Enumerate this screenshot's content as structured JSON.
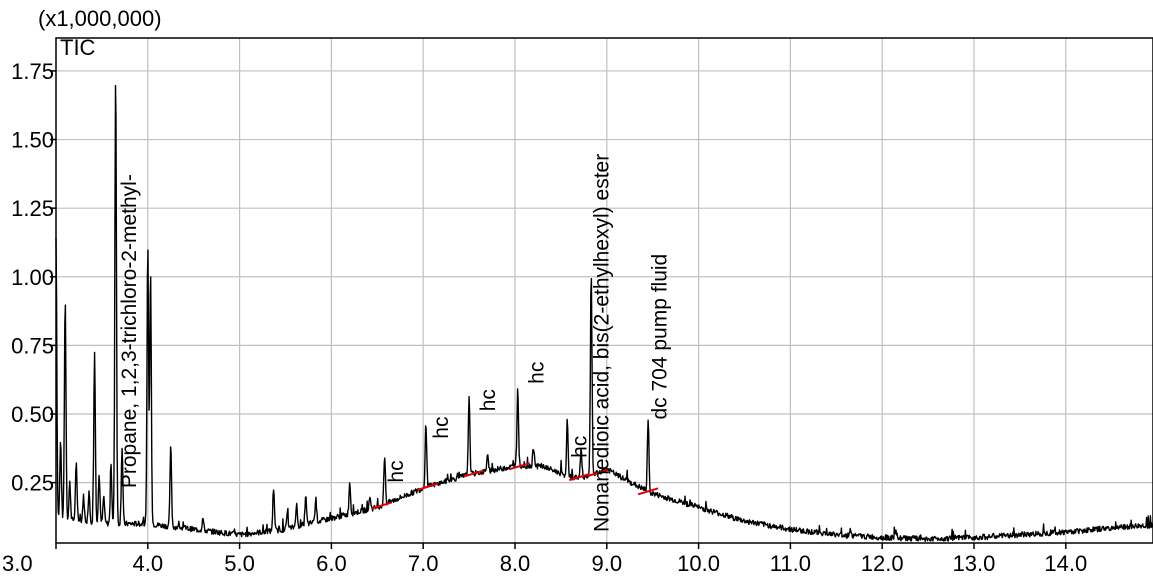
{
  "chart_data": {
    "type": "line",
    "scale_label": "(x1,000,000)",
    "series": [
      {
        "name": "TIC"
      }
    ],
    "xlim": [
      3.0,
      14.95
    ],
    "ylim": [
      0.03,
      1.87
    ],
    "grid": true,
    "x_ticks": [
      3.0,
      4.0,
      5.0,
      6.0,
      7.0,
      8.0,
      9.0,
      10.0,
      11.0,
      12.0,
      13.0,
      14.0
    ],
    "x_tick_labels": [
      "3.0",
      "4.0",
      "5.0",
      "6.0",
      "7.0",
      "8.0",
      "9.0",
      "10.0",
      "11.0",
      "12.0",
      "13.0",
      "14.0"
    ],
    "y_ticks": [
      0.25,
      0.5,
      0.75,
      1.0,
      1.25,
      1.5,
      1.75
    ],
    "y_tick_labels": [
      "0.25",
      "0.50",
      "0.75",
      "1.00",
      "1.25",
      "1.50",
      "1.75"
    ],
    "baseline": [
      [
        3.0,
        0.12
      ],
      [
        3.3,
        0.11
      ],
      [
        3.6,
        0.1
      ],
      [
        4.0,
        0.1
      ],
      [
        4.5,
        0.08
      ],
      [
        5.0,
        0.06
      ],
      [
        5.5,
        0.08
      ],
      [
        6.0,
        0.12
      ],
      [
        6.5,
        0.16
      ],
      [
        7.0,
        0.23
      ],
      [
        7.5,
        0.28
      ],
      [
        8.0,
        0.31
      ],
      [
        8.3,
        0.31
      ],
      [
        8.6,
        0.27
      ],
      [
        8.8,
        0.27
      ],
      [
        9.0,
        0.3
      ],
      [
        9.2,
        0.26
      ],
      [
        9.5,
        0.21
      ],
      [
        10.0,
        0.16
      ],
      [
        10.5,
        0.11
      ],
      [
        11.0,
        0.08
      ],
      [
        11.5,
        0.06
      ],
      [
        12.0,
        0.05
      ],
      [
        12.5,
        0.045
      ],
      [
        13.0,
        0.05
      ],
      [
        13.5,
        0.06
      ],
      [
        14.0,
        0.07
      ],
      [
        14.5,
        0.085
      ],
      [
        14.95,
        0.095
      ]
    ],
    "peaks": [
      {
        "x": 3.0,
        "y": 1.14
      },
      {
        "x": 3.05,
        "y": 0.4
      },
      {
        "x": 3.1,
        "y": 0.92
      },
      {
        "x": 3.15,
        "y": 0.25
      },
      {
        "x": 3.22,
        "y": 0.32
      },
      {
        "x": 3.3,
        "y": 0.2
      },
      {
        "x": 3.36,
        "y": 0.22
      },
      {
        "x": 3.42,
        "y": 0.72
      },
      {
        "x": 3.47,
        "y": 0.28
      },
      {
        "x": 3.52,
        "y": 0.2
      },
      {
        "x": 3.6,
        "y": 0.3
      },
      {
        "x": 3.65,
        "y": 1.75
      },
      {
        "x": 3.72,
        "y": 0.38
      },
      {
        "x": 4.0,
        "y": 1.1
      },
      {
        "x": 4.03,
        "y": 1.02
      },
      {
        "x": 4.25,
        "y": 0.38
      },
      {
        "x": 4.6,
        "y": 0.12
      },
      {
        "x": 5.37,
        "y": 0.23
      },
      {
        "x": 5.52,
        "y": 0.14
      },
      {
        "x": 5.62,
        "y": 0.17
      },
      {
        "x": 5.72,
        "y": 0.2
      },
      {
        "x": 5.83,
        "y": 0.19
      },
      {
        "x": 6.2,
        "y": 0.25
      },
      {
        "x": 6.42,
        "y": 0.2
      },
      {
        "x": 6.58,
        "y": 0.35
      },
      {
        "x": 7.03,
        "y": 0.46
      },
      {
        "x": 7.5,
        "y": 0.56
      },
      {
        "x": 7.7,
        "y": 0.35
      },
      {
        "x": 8.03,
        "y": 0.59
      },
      {
        "x": 8.2,
        "y": 0.38
      },
      {
        "x": 8.57,
        "y": 0.46
      },
      {
        "x": 8.72,
        "y": 0.37
      },
      {
        "x": 8.83,
        "y": 1.01
      },
      {
        "x": 9.45,
        "y": 0.48
      },
      {
        "x": 11.65,
        "y": 0.08
      },
      {
        "x": 12.15,
        "y": 0.07
      }
    ],
    "annotations": [
      {
        "text": "Propane, 1,2,3-trichloro-2-methyl-",
        "x": 3.87,
        "y": 0.23
      },
      {
        "text": "hc",
        "x": 6.78,
        "y": 0.25
      },
      {
        "text": "hc",
        "x": 7.27,
        "y": 0.41
      },
      {
        "text": "hc",
        "x": 7.78,
        "y": 0.51
      },
      {
        "text": "hc",
        "x": 8.31,
        "y": 0.61
      },
      {
        "text": "hc",
        "x": 8.78,
        "y": 0.34
      },
      {
        "text": "Nonanedioic acid, bis(2-ethylhexyl) ester",
        "x": 9.02,
        "y": 0.07
      },
      {
        "text": "dc 704 pump fluid",
        "x": 9.65,
        "y": 0.48
      }
    ],
    "integration_marks": [
      6.55,
      7.05,
      7.55,
      8.05,
      8.7,
      8.9,
      9.45
    ]
  },
  "colors": {
    "trace": "#000000",
    "grid": "#c0c0c0",
    "marker": "#e00000"
  }
}
